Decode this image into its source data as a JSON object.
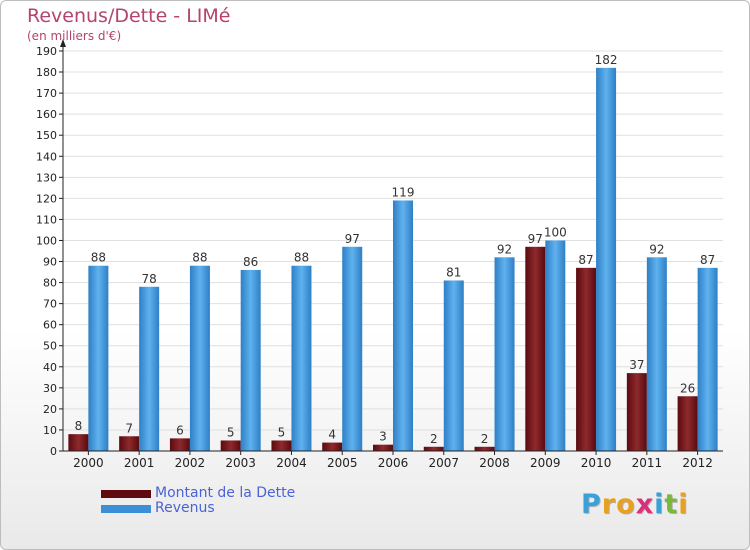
{
  "title": "Revenus/Dette - LIMé",
  "subtitle": "(en milliers d'€)",
  "chart_data": {
    "type": "bar",
    "categories": [
      "2000",
      "2001",
      "2002",
      "2003",
      "2004",
      "2005",
      "2006",
      "2007",
      "2008",
      "2009",
      "2010",
      "2011",
      "2012"
    ],
    "series": [
      {
        "name": "Montant de la Dette",
        "values": [
          8,
          7,
          6,
          5,
          5,
          4,
          3,
          2,
          2,
          97,
          87,
          37,
          26
        ],
        "color": "#7a1c20"
      },
      {
        "name": "Revenus",
        "values": [
          88,
          78,
          88,
          86,
          88,
          97,
          119,
          81,
          92,
          100,
          182,
          92,
          87
        ],
        "color": "#4aa3e6"
      }
    ],
    "ylim": [
      0,
      190
    ],
    "yticks": [
      0,
      10,
      20,
      30,
      40,
      50,
      60,
      70,
      80,
      90,
      100,
      110,
      120,
      130,
      140,
      150,
      160,
      170,
      180,
      190
    ],
    "grid": true,
    "legend_placement": "bottom-left"
  },
  "legend": {
    "items": [
      {
        "label": "Montant de la Dette",
        "color": "#5e0a10"
      },
      {
        "label": "Revenus",
        "color": "#3a8fd6"
      }
    ]
  },
  "logo": {
    "text": "Proxiti",
    "letters": [
      {
        "ch": "P",
        "color": "#3aa0d8"
      },
      {
        "ch": "r",
        "color": "#e8a020"
      },
      {
        "ch": "o",
        "color": "#e8a020"
      },
      {
        "ch": "x",
        "color": "#d8307a"
      },
      {
        "ch": "i",
        "color": "#3aa0d8"
      },
      {
        "ch": "t",
        "color": "#78b83a"
      },
      {
        "ch": "i",
        "color": "#e8a020"
      }
    ]
  }
}
